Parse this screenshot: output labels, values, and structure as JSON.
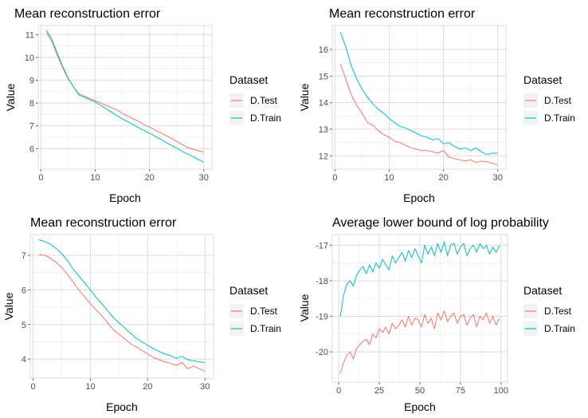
{
  "colors": {
    "test": "#F8766D",
    "train": "#00BFC4"
  },
  "chart_data": [
    {
      "type": "line",
      "title": "Mean reconstruction error",
      "xlabel": "Epoch",
      "ylabel": "Value",
      "xlim": [
        -0.5,
        31.5
      ],
      "ylim": [
        5.1,
        11.4
      ],
      "xticks": [
        0,
        10,
        20,
        30
      ],
      "yticks": [
        6,
        7,
        8,
        9,
        10,
        11
      ],
      "legend": {
        "title": "Dataset",
        "position": "right"
      },
      "x": [
        1,
        2,
        3,
        4,
        5,
        6,
        7,
        8,
        9,
        10,
        11,
        12,
        13,
        14,
        15,
        16,
        17,
        18,
        19,
        20,
        21,
        22,
        23,
        24,
        25,
        26,
        27,
        28,
        29,
        30
      ],
      "series": [
        {
          "name": "D.Test",
          "color_key": "test",
          "values": [
            11.1,
            10.7,
            10.1,
            9.55,
            9.05,
            8.7,
            8.4,
            8.3,
            8.2,
            8.1,
            8.0,
            7.9,
            7.8,
            7.7,
            7.55,
            7.42,
            7.3,
            7.2,
            7.05,
            6.95,
            6.82,
            6.7,
            6.58,
            6.45,
            6.32,
            6.18,
            6.05,
            5.98,
            5.9,
            5.85
          ]
        },
        {
          "name": "D.Train",
          "color_key": "train",
          "values": [
            11.2,
            10.8,
            10.2,
            9.6,
            9.1,
            8.7,
            8.35,
            8.25,
            8.15,
            8.05,
            7.9,
            7.75,
            7.6,
            7.45,
            7.3,
            7.18,
            7.05,
            6.92,
            6.8,
            6.68,
            6.55,
            6.42,
            6.28,
            6.15,
            6.02,
            5.88,
            5.76,
            5.65,
            5.52,
            5.4
          ]
        }
      ]
    },
    {
      "type": "line",
      "title": "Mean reconstruction error",
      "xlabel": "Epoch",
      "ylabel": "Value",
      "xlim": [
        -0.5,
        31.5
      ],
      "ylim": [
        11.5,
        16.9
      ],
      "xticks": [
        0,
        10,
        20,
        30
      ],
      "yticks": [
        12,
        13,
        14,
        15,
        16
      ],
      "legend": {
        "title": "Dataset",
        "position": "right"
      },
      "x": [
        1,
        2,
        3,
        4,
        5,
        6,
        7,
        8,
        9,
        10,
        11,
        12,
        13,
        14,
        15,
        16,
        17,
        18,
        19,
        20,
        21,
        22,
        23,
        24,
        25,
        26,
        27,
        28,
        29,
        30
      ],
      "series": [
        {
          "name": "D.Test",
          "color_key": "test",
          "values": [
            15.45,
            14.9,
            14.3,
            13.9,
            13.6,
            13.25,
            13.15,
            12.95,
            12.8,
            12.7,
            12.55,
            12.5,
            12.4,
            12.3,
            12.25,
            12.2,
            12.2,
            12.15,
            12.1,
            12.2,
            11.95,
            11.9,
            11.85,
            11.8,
            11.85,
            11.75,
            11.8,
            11.78,
            11.72,
            11.65
          ]
        },
        {
          "name": "D.Train",
          "color_key": "train",
          "values": [
            16.65,
            16.1,
            15.4,
            14.9,
            14.5,
            14.2,
            13.95,
            13.75,
            13.6,
            13.4,
            13.25,
            13.1,
            13.05,
            12.95,
            12.85,
            12.75,
            12.7,
            12.6,
            12.65,
            12.45,
            12.5,
            12.35,
            12.25,
            12.3,
            12.2,
            12.3,
            12.15,
            12.05,
            12.1,
            12.1
          ]
        }
      ]
    },
    {
      "type": "line",
      "title": "Mean reconstruction error",
      "xlabel": "Epoch",
      "ylabel": "Value",
      "xlim": [
        -0.5,
        31.5
      ],
      "ylim": [
        3.45,
        7.6
      ],
      "xticks": [
        0,
        10,
        20,
        30
      ],
      "yticks": [
        4,
        5,
        6,
        7
      ],
      "legend": {
        "title": "Dataset",
        "position": "right"
      },
      "x": [
        1,
        2,
        3,
        4,
        5,
        6,
        7,
        8,
        9,
        10,
        11,
        12,
        13,
        14,
        15,
        16,
        17,
        18,
        19,
        20,
        21,
        22,
        23,
        24,
        25,
        26,
        27,
        28,
        29,
        30
      ],
      "series": [
        {
          "name": "D.Test",
          "color_key": "test",
          "values": [
            7.02,
            7.0,
            6.92,
            6.8,
            6.65,
            6.45,
            6.22,
            6.0,
            5.8,
            5.6,
            5.42,
            5.25,
            5.05,
            4.85,
            4.72,
            4.58,
            4.45,
            4.35,
            4.25,
            4.15,
            4.05,
            3.98,
            3.92,
            3.88,
            3.82,
            3.9,
            3.72,
            3.8,
            3.72,
            3.65
          ]
        },
        {
          "name": "D.Train",
          "color_key": "train",
          "values": [
            7.45,
            7.4,
            7.32,
            7.2,
            7.05,
            6.85,
            6.6,
            6.4,
            6.2,
            6.0,
            5.78,
            5.6,
            5.4,
            5.2,
            5.05,
            4.9,
            4.75,
            4.6,
            4.5,
            4.4,
            4.3,
            4.22,
            4.15,
            4.1,
            4.02,
            4.08,
            3.98,
            3.95,
            3.92,
            3.9
          ]
        }
      ]
    },
    {
      "type": "line",
      "title": "Average lower bound of log probability",
      "xlabel": "Epoch",
      "ylabel": "Value",
      "xlim": [
        -4,
        104
      ],
      "ylim": [
        -20.85,
        -16.7
      ],
      "xticks": [
        0,
        25,
        50,
        75,
        100
      ],
      "yticks": [
        -20,
        -19,
        -18,
        -17
      ],
      "legend": {
        "title": "Dataset",
        "position": "right"
      },
      "x": [
        1,
        3,
        5,
        7,
        9,
        11,
        13,
        15,
        17,
        19,
        21,
        23,
        25,
        27,
        29,
        31,
        33,
        35,
        37,
        39,
        41,
        43,
        45,
        47,
        49,
        51,
        53,
        55,
        57,
        59,
        61,
        63,
        65,
        67,
        69,
        71,
        73,
        75,
        77,
        79,
        81,
        83,
        85,
        87,
        89,
        91,
        93,
        95,
        97,
        99
      ],
      "series": [
        {
          "name": "D.Test",
          "color_key": "test",
          "values": [
            -20.6,
            -20.3,
            -20.1,
            -20.0,
            -20.2,
            -19.9,
            -19.8,
            -19.7,
            -19.65,
            -19.8,
            -19.5,
            -19.6,
            -19.35,
            -19.45,
            -19.3,
            -19.5,
            -19.2,
            -19.35,
            -19.25,
            -19.1,
            -19.3,
            -19.0,
            -19.25,
            -19.05,
            -19.1,
            -19.3,
            -18.95,
            -19.2,
            -19.05,
            -19.35,
            -18.9,
            -19.1,
            -18.85,
            -19.15,
            -19.0,
            -18.9,
            -19.2,
            -19.0,
            -18.95,
            -19.25,
            -19.05,
            -18.95,
            -19.3,
            -19.0,
            -19.1,
            -18.9,
            -19.2,
            -19.0,
            -19.25,
            -19.05
          ]
        },
        {
          "name": "D.Train",
          "color_key": "train",
          "values": [
            -19.0,
            -18.4,
            -18.1,
            -18.0,
            -18.15,
            -17.85,
            -17.7,
            -17.6,
            -17.8,
            -17.55,
            -17.75,
            -17.5,
            -17.65,
            -17.4,
            -17.55,
            -17.7,
            -17.3,
            -17.5,
            -17.35,
            -17.2,
            -17.45,
            -17.15,
            -17.35,
            -17.1,
            -17.3,
            -17.5,
            -17.0,
            -17.25,
            -17.05,
            -17.3,
            -16.95,
            -17.2,
            -16.9,
            -17.3,
            -17.0,
            -16.95,
            -17.25,
            -17.05,
            -16.95,
            -17.3,
            -17.1,
            -17.0,
            -17.2,
            -16.95,
            -17.1,
            -17.0,
            -17.25,
            -17.05,
            -17.2,
            -17.0
          ]
        }
      ]
    }
  ]
}
